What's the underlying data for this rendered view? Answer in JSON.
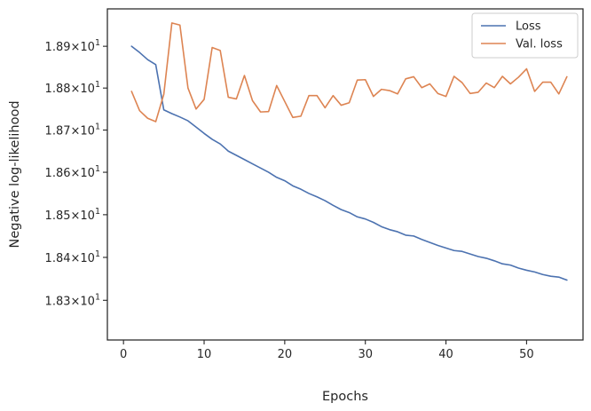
{
  "chart_data": {
    "type": "line",
    "title": "",
    "xlabel": "Epochs",
    "ylabel": "Negative log-likelihood",
    "yscale": "log",
    "xlim": [
      -2,
      57
    ],
    "ylim": [
      18.208,
      18.99
    ],
    "grid": false,
    "legend_position": "top-right",
    "x_ticks": [
      0,
      10,
      20,
      30,
      40,
      50
    ],
    "x_tick_labels": [
      "0",
      "10",
      "20",
      "30",
      "40",
      "50"
    ],
    "y_ticks": [
      18.3,
      18.4,
      18.5,
      18.6,
      18.7,
      18.8,
      18.9
    ],
    "y_tick_mantissas": [
      "1.83",
      "1.84",
      "1.85",
      "1.86",
      "1.87",
      "1.88",
      "1.89"
    ],
    "y_tick_times": "×",
    "y_tick_base": "10",
    "y_tick_exponent": "1",
    "x": [
      1,
      2,
      3,
      4,
      5,
      6,
      7,
      8,
      9,
      10,
      11,
      12,
      13,
      14,
      15,
      16,
      17,
      18,
      19,
      20,
      21,
      22,
      23,
      24,
      25,
      26,
      27,
      28,
      29,
      30,
      31,
      32,
      33,
      34,
      35,
      36,
      37,
      38,
      39,
      40,
      41,
      42,
      43,
      44,
      45,
      46,
      47,
      48,
      49,
      50,
      51,
      52,
      53,
      54,
      55
    ],
    "series": [
      {
        "name": "Loss",
        "color": "#4c72b0",
        "values": [
          18.9,
          18.885,
          18.868,
          18.856,
          18.748,
          18.739,
          18.731,
          18.722,
          18.707,
          18.692,
          18.678,
          18.667,
          18.65,
          18.64,
          18.63,
          18.62,
          18.61,
          18.6,
          18.588,
          18.58,
          18.568,
          18.56,
          18.55,
          18.542,
          18.533,
          18.522,
          18.512,
          18.505,
          18.495,
          18.49,
          18.482,
          18.472,
          18.465,
          18.46,
          18.452,
          18.45,
          18.442,
          18.435,
          18.428,
          18.422,
          18.416,
          18.414,
          18.408,
          18.402,
          18.398,
          18.392,
          18.385,
          18.382,
          18.375,
          18.37,
          18.366,
          18.36,
          18.356,
          18.354,
          18.347
        ]
      },
      {
        "name": "Val. loss",
        "color": "#dd8452",
        "values": [
          18.792,
          18.746,
          18.728,
          18.72,
          18.785,
          18.956,
          18.951,
          18.8,
          18.75,
          18.773,
          18.897,
          18.89,
          18.778,
          18.774,
          18.83,
          18.77,
          18.743,
          18.744,
          18.806,
          18.768,
          18.73,
          18.733,
          18.782,
          18.782,
          18.753,
          18.782,
          18.759,
          18.765,
          18.819,
          18.82,
          18.78,
          18.797,
          18.794,
          18.786,
          18.822,
          18.827,
          18.801,
          18.81,
          18.787,
          18.78,
          18.828,
          18.813,
          18.787,
          18.79,
          18.812,
          18.801,
          18.828,
          18.81,
          18.826,
          18.846,
          18.792,
          18.814,
          18.814,
          18.786,
          18.827
        ]
      }
    ]
  }
}
